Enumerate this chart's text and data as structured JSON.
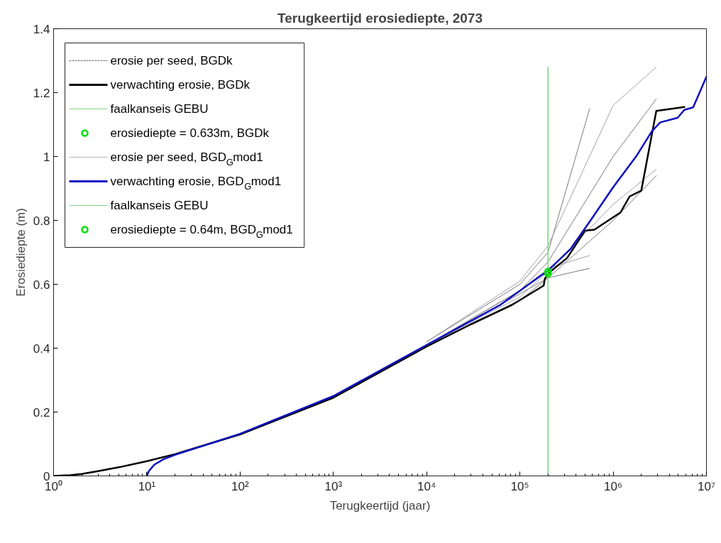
{
  "chart_data": {
    "type": "line",
    "title": "Terugkeertijd erosiediepte, 2073",
    "xlabel": "Terugkeertijd (jaar)",
    "ylabel": "Erosiediepte (m)",
    "log": "x",
    "xlim": [
      1,
      10000000
    ],
    "ylim": [
      0,
      1.4
    ],
    "xticks": [
      {
        "value": 1,
        "label": "10⁰"
      },
      {
        "value": 10,
        "label": "10¹"
      },
      {
        "value": 100,
        "label": "10²"
      },
      {
        "value": 1000,
        "label": "10³"
      },
      {
        "value": 10000,
        "label": "10⁴"
      },
      {
        "value": 100000,
        "label": "10⁵"
      },
      {
        "value": 1000000,
        "label": "10⁶"
      },
      {
        "value": 10000000,
        "label": "10⁷"
      }
    ],
    "yticks": [
      0,
      0.2,
      0.4,
      0.6,
      0.8,
      1,
      1.2,
      1.4
    ],
    "legend": "top left",
    "series": [
      {
        "name": "erosie per seed, BGDk",
        "line_style": "dotted",
        "color": "#707070",
        "x": [
          10000,
          100000,
          200000,
          560000
        ],
        "values": [
          0.41,
          0.57,
          0.62,
          0.65
        ]
      },
      {
        "name": "verwachting erosie, BGDk",
        "line_style": "solid",
        "color": "#000000",
        "x": [
          1,
          1.5,
          2,
          3,
          5,
          10,
          20,
          100,
          1000,
          10000,
          30000,
          83000,
          180000,
          185000,
          210000,
          320000,
          500000,
          630000,
          1200000,
          1500000,
          2000000,
          2900000,
          5800000
        ],
        "values": [
          0,
          0.002,
          0.006,
          0.015,
          0.027,
          0.046,
          0.068,
          0.13,
          0.245,
          0.405,
          0.475,
          0.536,
          0.596,
          0.618,
          0.639,
          0.682,
          0.768,
          0.771,
          0.825,
          0.875,
          0.893,
          1.143,
          1.155
        ]
      },
      {
        "name": "faalkanseis GEBU",
        "line_style": "solid",
        "color": "#80d880",
        "x": [
          200000,
          200000
        ],
        "values": [
          0,
          1.28
        ]
      },
      {
        "name": "erosiediepte = 0.633m, BGDk",
        "type": "scatter",
        "marker": "circle",
        "color": "#00e000",
        "x": [
          200000
        ],
        "values": [
          0.633
        ]
      },
      {
        "name": "erosie per seed, BGD$_{G}$mod1",
        "line_style": "dotted",
        "color": "#9a9aaa",
        "x": [
          10000,
          100000,
          200000,
          560000
        ],
        "values": [
          0.41,
          0.58,
          0.65,
          0.69
        ]
      },
      {
        "name": "verwachting erosie, BGD$_{G}$mod1",
        "line_style": "solid",
        "color": "#0d0dc0",
        "x": [
          10,
          10.5,
          12,
          15,
          20,
          100,
          1000,
          10000,
          62000,
          200000,
          350000,
          560000,
          1000000,
          1800000,
          2600000,
          3200000,
          4900000,
          5800000,
          7200000,
          10000000
        ],
        "values": [
          0,
          0.015,
          0.035,
          0.052,
          0.066,
          0.132,
          0.25,
          0.41,
          0.536,
          0.643,
          0.711,
          0.796,
          0.904,
          1.004,
          1.079,
          1.107,
          1.121,
          1.146,
          1.154,
          1.25
        ]
      },
      {
        "name": "faalkanseis GEBU",
        "line_style": "solid",
        "color": "#80d880",
        "x": [
          200000,
          200000
        ],
        "values": [
          0,
          1.28
        ]
      },
      {
        "name": "erosiediepte = 0.64m, BGD$_{G}$mod1",
        "type": "scatter",
        "marker": "circle",
        "color": "#00e000",
        "x": [
          200000
        ],
        "values": [
          0.64
        ]
      },
      {
        "line_style": "dotted",
        "color": "#707070",
        "x": [
          10000,
          100000,
          200000,
          560000
        ],
        "values": [
          0.42,
          0.6,
          0.7,
          1.15
        ]
      },
      {
        "line_style": "dotted",
        "color": "#707070",
        "x": [
          10000,
          100000,
          200000,
          1000000,
          2900000
        ],
        "values": [
          0.41,
          0.55,
          0.62,
          0.8,
          0.94
        ]
      },
      {
        "line_style": "dotted",
        "color": "#707070",
        "x": [
          10000,
          100000,
          200000,
          1000000,
          2900000
        ],
        "values": [
          0.41,
          0.58,
          0.67,
          1.0,
          1.18
        ]
      },
      {
        "line_style": "dotted",
        "color": "#9a9aaa",
        "x": [
          10000,
          100000,
          200000,
          1000000,
          2900000
        ],
        "values": [
          0.41,
          0.56,
          0.64,
          0.85,
          0.96
        ]
      },
      {
        "line_style": "dotted",
        "color": "#9a9aaa",
        "x": [
          10000,
          100000,
          200000,
          1000000,
          2900000
        ],
        "values": [
          0.42,
          0.61,
          0.72,
          1.16,
          1.28
        ]
      }
    ]
  }
}
